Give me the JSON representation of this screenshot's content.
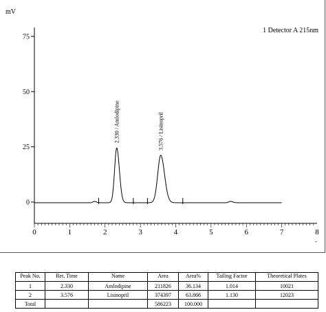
{
  "chart_data": {
    "type": "line",
    "y_unit": "mV",
    "detector_label": "1 Detector A 215nm",
    "x_ticks": [
      0,
      1,
      2,
      3,
      4,
      5,
      6,
      7,
      8
    ],
    "y_ticks": [
      0,
      25,
      50,
      75
    ],
    "xlim": [
      0,
      8
    ],
    "ylim": [
      -10,
      80
    ],
    "x_axis_symbol": "-",
    "grid": false,
    "series_color": "#000000",
    "baseline_mV": -0.3,
    "trace_end_min": 7.0,
    "peaks": [
      {
        "rt": 2.33,
        "height": 24.8,
        "width": 0.06,
        "label": "2.330 / Amlodipine"
      },
      {
        "rt": 3.576,
        "height": 21.5,
        "width": 0.085,
        "label": "3.576 / Lisinopril"
      }
    ],
    "minor_bumps": [
      {
        "x": 1.7,
        "y": 0.6,
        "width": 0.04
      },
      {
        "x": 5.55,
        "y": 0.6,
        "width": 0.05
      }
    ],
    "integration_marks": [
      1.82,
      2.8,
      3.2,
      4.2
    ]
  },
  "table": {
    "headers": [
      "Peak No.",
      "Ret. Time",
      "Name",
      "Area",
      "Area%",
      "Tailing Factor",
      "Theoretical Plates"
    ],
    "rows": [
      [
        "1",
        "2.330",
        "Amlodipine",
        "211826",
        "36.134",
        "1.014",
        "10021"
      ],
      [
        "2",
        "3.576",
        "Lisinopril",
        "374397",
        "63.866",
        "1.130",
        "12023"
      ],
      [
        "Total",
        "",
        "",
        "586223",
        "100.000",
        "",
        ""
      ]
    ]
  }
}
